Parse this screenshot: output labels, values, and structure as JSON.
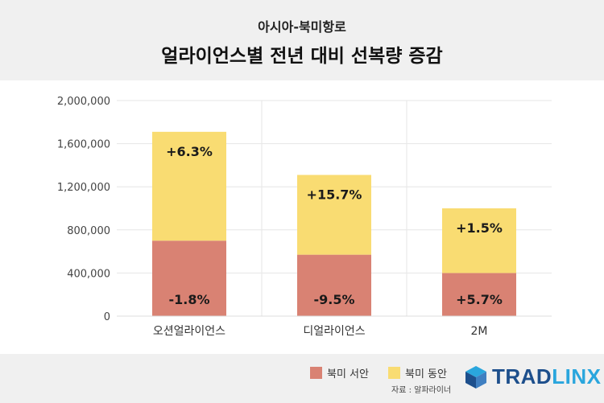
{
  "header": {
    "subtitle": "아시아-북미항로",
    "title": "얼라이언스별 전년 대비 선복량 증감"
  },
  "legend": {
    "west": "북미 서안",
    "east": "북미 동안"
  },
  "source": "자료 : 알파라이너",
  "logo": {
    "part1": "TRAD",
    "part2": "LINX",
    "icon": "tradlinx-cube-icon"
  },
  "colors": {
    "west": "#d98273",
    "east": "#f9dc72"
  },
  "chart_data": {
    "type": "bar",
    "stacked": true,
    "title": "얼라이언스별 전년 대비 선복량 증감",
    "subtitle": "아시아-북미항로",
    "categories": [
      "오션얼라이언스",
      "디얼라이언스",
      "2M"
    ],
    "series": [
      {
        "name": "북미 서안",
        "values": [
          700000,
          570000,
          400000
        ],
        "labels": [
          "-1.8%",
          "-9.5%",
          "+5.7%"
        ]
      },
      {
        "name": "북미 동안",
        "values": [
          1010000,
          740000,
          600000
        ],
        "labels": [
          "+6.3%",
          "+15.7%",
          "+1.5%"
        ]
      }
    ],
    "yticks": [
      "0",
      "400,000",
      "800,000",
      "1,200,000",
      "1,600,000",
      "2,000,000"
    ],
    "ylim": [
      0,
      2000000
    ],
    "grid": true,
    "legend_position": "bottom-right"
  }
}
